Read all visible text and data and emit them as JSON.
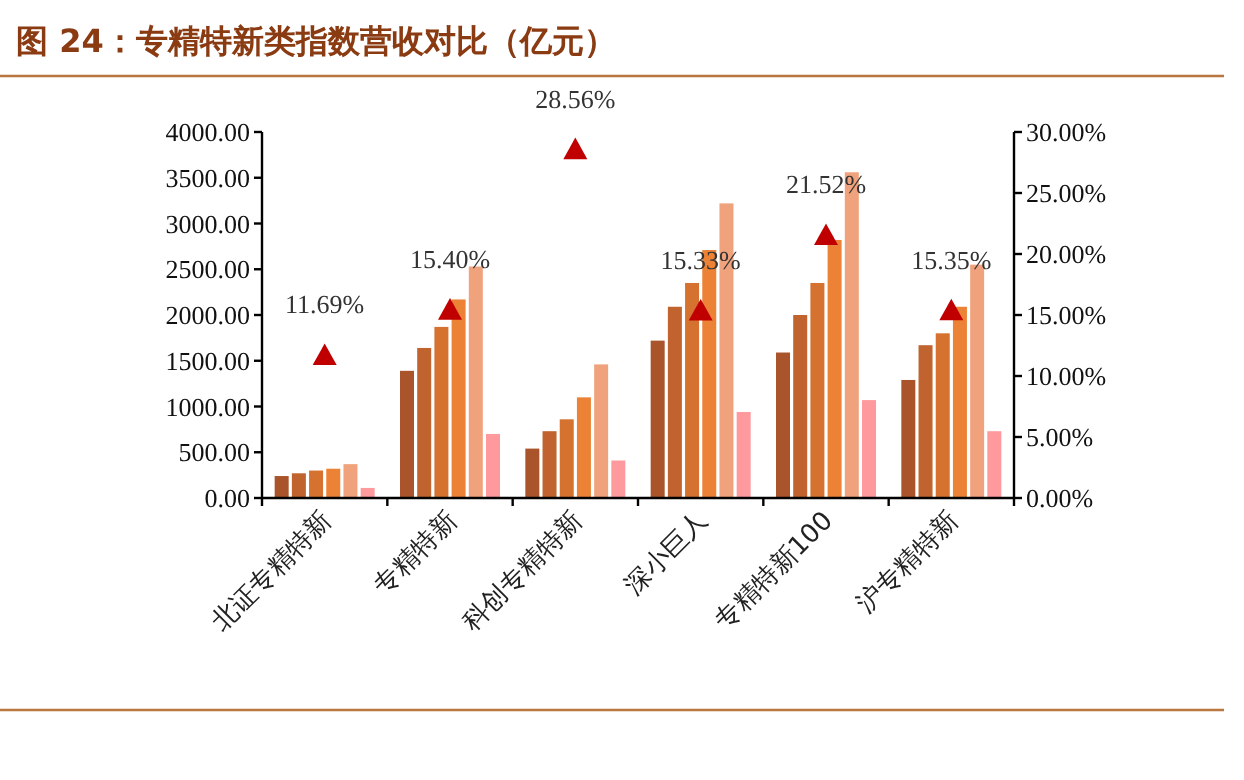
{
  "chart_data": {
    "type": "bar",
    "title": "图 24：专精特新类指数营收对比（亿元）",
    "categories": [
      "北证专精特新",
      "专精特新",
      "科创专精特新",
      "深小巨人",
      "专精特新100",
      "沪专精特新"
    ],
    "series": [
      {
        "color": "#a9542a",
        "values": [
          240,
          1390,
          540,
          1720,
          1590,
          1290
        ]
      },
      {
        "color": "#c0632e",
        "values": [
          270,
          1640,
          730,
          2090,
          2000,
          1670
        ]
      },
      {
        "color": "#d67230",
        "values": [
          300,
          1870,
          860,
          2350,
          2350,
          1800
        ]
      },
      {
        "color": "#ec8235",
        "values": [
          320,
          2170,
          1100,
          2710,
          2820,
          2090
        ]
      },
      {
        "color": "#f0a27c",
        "values": [
          370,
          2530,
          1460,
          3220,
          3560,
          2550
        ]
      },
      {
        "color": "#fe9a9e",
        "values": [
          110,
          700,
          410,
          940,
          1070,
          730
        ]
      },
      {
        "type": "scatter",
        "axis": "y2",
        "marker": "triangle",
        "color": "#c00000",
        "values": [
          11.69,
          15.4,
          28.56,
          15.33,
          21.52,
          15.35
        ],
        "value_labels": [
          "11.69%",
          "15.40%",
          "28.56%",
          "15.33%",
          "21.52%",
          "15.35%"
        ]
      }
    ],
    "ylim": [
      0,
      4000
    ],
    "yticks": [
      {
        "value": 0,
        "label": "0.00"
      },
      {
        "value": 500,
        "label": "500.00"
      },
      {
        "value": 1000,
        "label": "1000.00"
      },
      {
        "value": 1500,
        "label": "1500.00"
      },
      {
        "value": 2000,
        "label": "2000.00"
      },
      {
        "value": 2500,
        "label": "2500.00"
      },
      {
        "value": 3000,
        "label": "3000.00"
      },
      {
        "value": 3500,
        "label": "3500.00"
      },
      {
        "value": 4000,
        "label": "4000.00"
      }
    ],
    "y2lim": [
      0,
      30
    ],
    "y2ticks": [
      {
        "value": 0,
        "label": "0.00%"
      },
      {
        "value": 5,
        "label": "5.00%"
      },
      {
        "value": 10,
        "label": "10.00%"
      },
      {
        "value": 15,
        "label": "15.00%"
      },
      {
        "value": 20,
        "label": "20.00%"
      },
      {
        "value": 25,
        "label": "25.00%"
      },
      {
        "value": 30,
        "label": "30.00%"
      }
    ]
  }
}
